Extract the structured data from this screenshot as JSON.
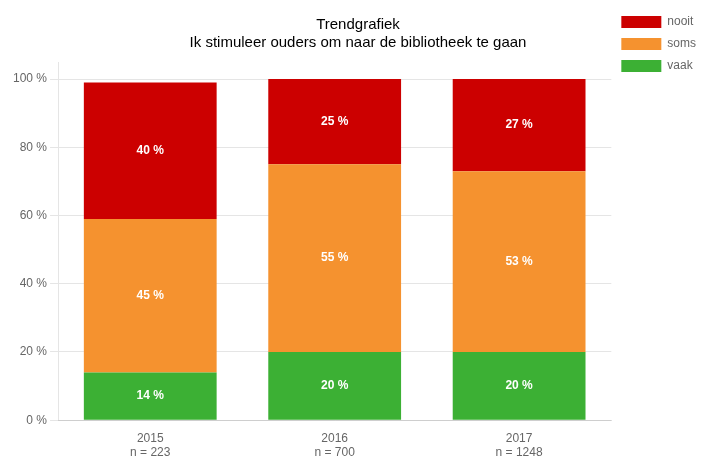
{
  "chart_data": {
    "type": "bar",
    "stacked": true,
    "title": "Trendgrafiek\nIk stimuleer ouders om naar de bibliotheek te gaan",
    "categories": [
      "2015\nn = 223",
      "2016\nn = 700",
      "2017\nn = 1248"
    ],
    "series": [
      {
        "name": "vaak",
        "color": "#3cb034",
        "values": [
          14,
          20,
          20
        ],
        "value_labels": [
          "14 %",
          "20 %",
          "20 %"
        ]
      },
      {
        "name": "soms",
        "color": "#f5922f",
        "values": [
          45,
          55,
          53
        ],
        "value_labels": [
          "45 %",
          "55 %",
          "53 %"
        ]
      },
      {
        "name": "nooit",
        "color": "#cc0000",
        "values": [
          40,
          25,
          27
        ],
        "value_labels": [
          "40 %",
          "25 %",
          "27 %"
        ]
      }
    ],
    "ylim": [
      0,
      105
    ],
    "yticks": [
      {
        "value": 0,
        "label": "0 %"
      },
      {
        "value": 20,
        "label": "20 %"
      },
      {
        "value": 40,
        "label": "40 %"
      },
      {
        "value": 60,
        "label": "60 %"
      },
      {
        "value": 80,
        "label": "80 %"
      },
      {
        "value": 100,
        "label": "100 %"
      }
    ],
    "grid": true,
    "legend": "upper right",
    "data_labels": true
  }
}
